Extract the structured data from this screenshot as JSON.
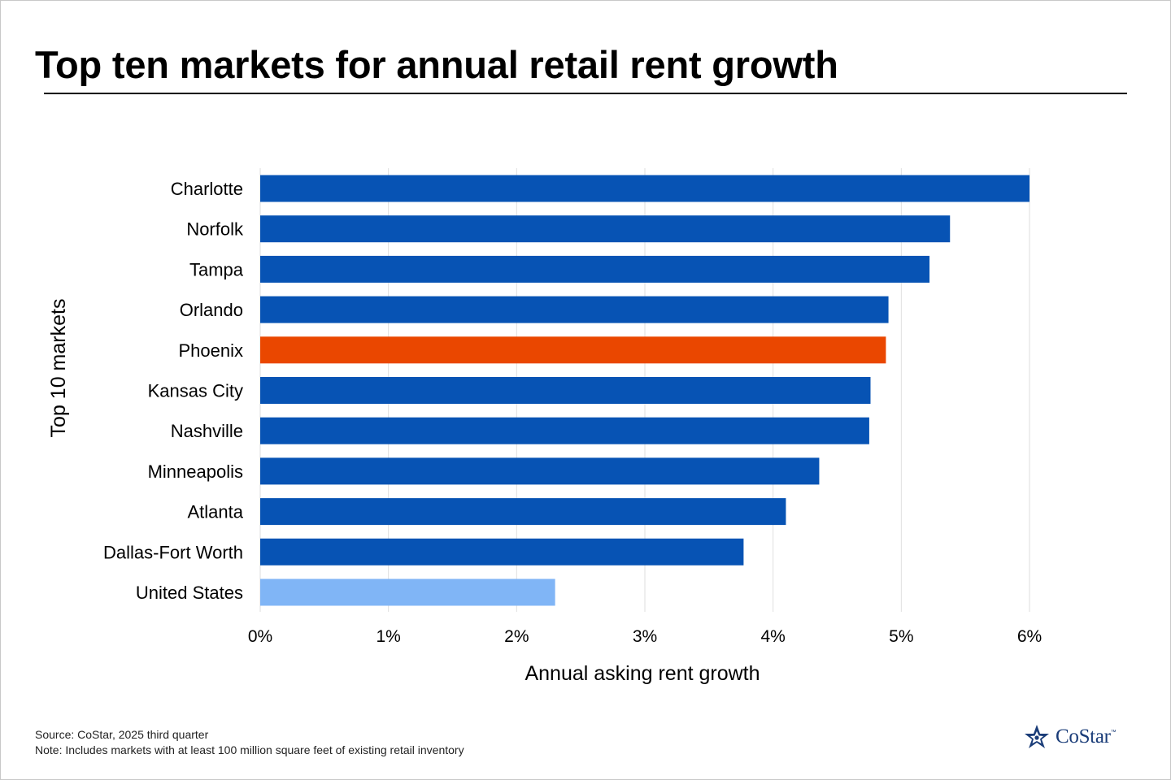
{
  "title": "Top ten markets for annual retail rent growth",
  "footer": {
    "source": "Source: CoStar, 2025 third quarter",
    "note": "Note: Includes markets with at least 100 million square feet of existing retail inventory"
  },
  "logo": {
    "text": "CoStar",
    "tm": "™",
    "icon": "costar-star-icon"
  },
  "colors": {
    "market": "#0753b4",
    "highlight": "#ea4700",
    "national": "#80b5f6",
    "grid": "#dedede",
    "logo": "#1a3c78"
  },
  "chart_data": {
    "type": "bar",
    "orientation": "horizontal",
    "categories": [
      "Charlotte",
      "Norfolk",
      "Tampa",
      "Orlando",
      "Phoenix",
      "Kansas City",
      "Nashville",
      "Minneapolis",
      "Atlanta",
      "Dallas-Fort Worth",
      "United States"
    ],
    "values": [
      6.0,
      5.38,
      5.22,
      4.9,
      4.88,
      4.76,
      4.75,
      4.36,
      4.1,
      3.77,
      2.3
    ],
    "highlight": [
      "Phoenix"
    ],
    "reference": [
      "United States"
    ],
    "xlabel": "Annual asking rent growth",
    "ylabel": "Top 10 markets",
    "xlim": [
      0,
      6
    ],
    "xticks": [
      "0%",
      "1%",
      "2%",
      "3%",
      "4%",
      "5%",
      "6%"
    ],
    "grid": true,
    "legend": "none"
  }
}
